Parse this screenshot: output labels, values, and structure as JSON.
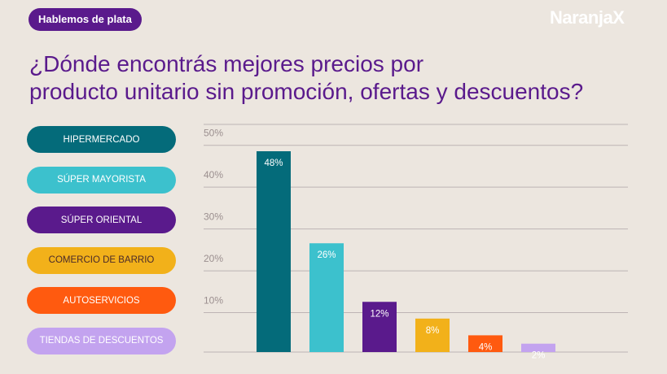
{
  "header": {
    "badge": "Hablemos de plata",
    "logo": "NaranjaX"
  },
  "title_lines": [
    "¿Dónde encontrás mejores precios por",
    "producto unitario sin promoción, ofertas y descuentos?"
  ],
  "colors": {
    "background": "#ece6df",
    "purple": "#5a1a8c",
    "grid": "#bdb4b4"
  },
  "chart_data": {
    "type": "bar",
    "title": "¿Dónde encontrás mejores precios por producto unitario sin promoción, ofertas y descuentos?",
    "categories": [
      "HIPERMERCADO",
      "SÚPER MAYORISTA",
      "SÚPER ORIENTAL",
      "COMERCIO DE BARRIO",
      "AUTOSERVICIOS",
      "TIENDAS DE DESCUENTOS"
    ],
    "values": [
      48,
      26,
      12,
      8,
      4,
      2
    ],
    "value_labels": [
      "48%",
      "26%",
      "12%",
      "8%",
      "4%",
      "2%"
    ],
    "colors": [
      "#046b7a",
      "#3cc1cd",
      "#5a1a8c",
      "#f2b11a",
      "#ff5a0f",
      "#c3a3ef"
    ],
    "legend_text_colors": [
      "#ffffff",
      "#ffffff",
      "#ffffff",
      "#4a2a2a",
      "#ffffff",
      "#ffffff"
    ],
    "y_ticks": [
      10,
      20,
      30,
      40,
      50
    ],
    "y_tick_labels": [
      "10%",
      "20%",
      "30%",
      "40%",
      "50%"
    ],
    "ylim": [
      0,
      55
    ],
    "grid": true,
    "legend_position": "left"
  }
}
